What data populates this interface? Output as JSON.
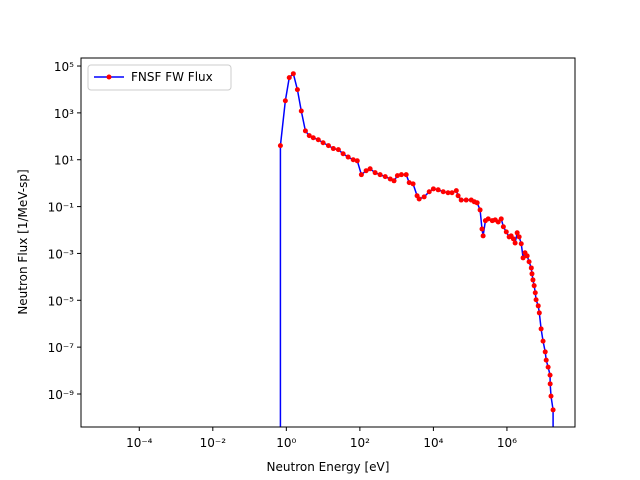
{
  "chart_data": {
    "type": "line",
    "xlabel": "Neutron Energy [eV]",
    "ylabel": "Neutron Flux [1/MeV-sp]",
    "log_x": true,
    "log_y": true,
    "legend": "upper left",
    "xlim": [
      2.6e-06,
      71000000.0
    ],
    "ylim": [
      3.9e-11,
      220000.0
    ],
    "xticks": [
      {
        "value": 0.0001,
        "label": "10⁻⁴"
      },
      {
        "value": 0.01,
        "label": "10⁻²"
      },
      {
        "value": 1,
        "label": "10⁰"
      },
      {
        "value": 100,
        "label": "10²"
      },
      {
        "value": 10000,
        "label": "10⁴"
      },
      {
        "value": 1000000,
        "label": "10⁶"
      }
    ],
    "yticks": [
      {
        "value": 1e-09,
        "label": "10⁻⁹"
      },
      {
        "value": 1e-07,
        "label": "10⁻⁷"
      },
      {
        "value": 1e-05,
        "label": "10⁻⁵"
      },
      {
        "value": 0.001,
        "label": "10⁻³"
      },
      {
        "value": 0.1,
        "label": "10⁻¹"
      },
      {
        "value": 10,
        "label": "10¹"
      },
      {
        "value": 1000,
        "label": "10³"
      },
      {
        "value": 100000,
        "label": "10⁵"
      }
    ],
    "x": [
      0.69,
      0.69,
      0.94,
      1.2,
      1.55,
      2.0,
      2.55,
      3.3,
      4.2,
      5.4,
      7.4,
      10,
      14,
      19,
      26,
      35,
      48,
      66,
      85,
      110,
      148,
      190,
      260,
      355,
      490,
      670,
      850,
      1050,
      1350,
      1820,
      2200,
      2800,
      3600,
      4100,
      5600,
      7700,
      10000,
      13500,
      18500,
      25000,
      32000,
      42000,
      47000,
      57000,
      78000,
      107000,
      130000,
      155000,
      186000,
      210000,
      225000,
      260000,
      310000,
      400000,
      480000,
      580000,
      700000,
      800000,
      960000,
      1150000,
      1300000,
      1500000,
      1670000,
      1900000,
      2150000,
      2450000,
      2750000,
      3100000,
      3550000,
      4000000,
      4600000,
      4800000,
      5100000,
      5500000,
      5900000,
      6200000,
      7100000,
      7600000,
      8500000,
      9600000,
      11000000,
      11700000,
      13200000,
      14900000,
      15000000,
      15800000,
      18000000,
      18000000
    ],
    "series": [
      {
        "name": "FNSF FW Flux",
        "color": "#0000ff",
        "marker_color": "#ff0000",
        "values": [
          1e-12,
          40,
          3300,
          32000,
          47000,
          9800,
          1200,
          170,
          107,
          87,
          71,
          53,
          40,
          30,
          27,
          18,
          13,
          10,
          9,
          2.3,
          3.4,
          4.1,
          2.8,
          2.3,
          1.9,
          1.5,
          1.26,
          2.1,
          2.3,
          2.3,
          1.05,
          0.93,
          0.29,
          0.21,
          0.26,
          0.43,
          0.57,
          0.52,
          0.43,
          0.39,
          0.39,
          0.48,
          0.29,
          0.19,
          0.19,
          0.19,
          0.16,
          0.145,
          0.072,
          0.011,
          0.0056,
          0.025,
          0.03,
          0.025,
          0.027,
          0.022,
          0.03,
          0.0138,
          0.0083,
          0.0051,
          0.0056,
          0.0042,
          0.0028,
          0.0076,
          0.0051,
          0.0026,
          0.00065,
          0.00107,
          0.00079,
          0.00044,
          0.00024,
          0.000135,
          7.4e-05,
          4.2e-05,
          2.1e-05,
          1.05e-05,
          5.8e-06,
          2.9e-06,
          6e-07,
          1.8e-07,
          6.3e-08,
          2.8e-08,
          1.4e-08,
          6.4e-09,
          2.7e-09,
          8.1e-10,
          2.1e-10,
          1e-12
        ]
      }
    ]
  }
}
